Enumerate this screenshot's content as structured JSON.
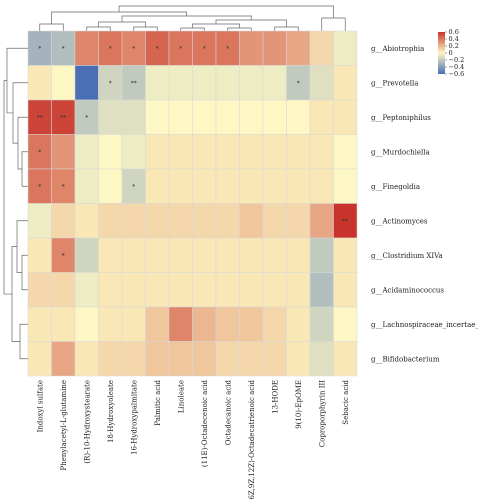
{
  "chart_data": {
    "type": "heatmap",
    "title": "",
    "xlabel": "",
    "ylabel": "",
    "columns": [
      "Indoxyl sulfate",
      "Phenylacetyl-L-glutamine",
      "(R)-10-Hydroxystearate",
      "18-Hydroxyoleate",
      "16-Hydroxypalmitate",
      "Palmitic acid",
      "Linoleate",
      "(11E)-Octadecenoic acid",
      "Octadecanoic acid",
      "(6Z,9Z,12Z)-Octadecatrienoic acid",
      "13-HODE",
      "9(10)-EpOME",
      "Coproporphyrin III",
      "Sebacic acid"
    ],
    "rows": [
      "g__Abiotrophia",
      "g__Prevotella",
      "g__Peptoniphilus",
      "g__Murdochiella",
      "g__Finegoldia",
      "g__Actinomyces",
      "g__Clostridium XIVa",
      "g__Acidaminococcus",
      "g__Lachnospiraceae_incertae_sedis",
      "g__Bifidobacterium"
    ],
    "values": [
      [
        -0.3,
        -0.25,
        0.35,
        0.4,
        0.35,
        0.45,
        0.4,
        0.4,
        0.4,
        0.3,
        0.3,
        0.25,
        0.1,
        -0.05
      ],
      [
        0.05,
        0.0,
        -0.6,
        -0.15,
        -0.2,
        -0.05,
        -0.05,
        -0.05,
        -0.05,
        -0.05,
        -0.05,
        -0.2,
        -0.1,
        0.05
      ],
      [
        0.55,
        0.55,
        -0.2,
        -0.1,
        -0.1,
        0.0,
        0.0,
        0.0,
        0.0,
        0.0,
        0.0,
        0.0,
        0.05,
        0.05
      ],
      [
        0.4,
        0.3,
        -0.05,
        0.0,
        -0.05,
        0.05,
        0.05,
        0.05,
        0.05,
        0.05,
        0.05,
        0.05,
        0.05,
        0.0
      ],
      [
        0.4,
        0.35,
        -0.05,
        0.0,
        -0.15,
        0.05,
        0.05,
        0.05,
        0.05,
        0.05,
        0.05,
        0.05,
        0.05,
        0.0
      ],
      [
        -0.05,
        0.1,
        0.05,
        0.1,
        0.1,
        0.1,
        0.1,
        0.1,
        0.1,
        0.15,
        0.1,
        0.1,
        0.25,
        0.6
      ],
      [
        0.05,
        0.35,
        -0.15,
        0.05,
        0.05,
        0.05,
        0.05,
        0.05,
        0.05,
        0.05,
        0.05,
        0.05,
        -0.2,
        0.05
      ],
      [
        0.1,
        0.1,
        -0.05,
        0.05,
        0.05,
        0.05,
        0.05,
        0.05,
        0.05,
        0.05,
        0.05,
        0.05,
        -0.25,
        0.05
      ],
      [
        0.05,
        0.05,
        0.0,
        0.05,
        0.05,
        0.15,
        0.35,
        0.2,
        0.15,
        0.15,
        0.1,
        0.05,
        -0.15,
        0.0
      ],
      [
        0.05,
        0.25,
        0.05,
        0.1,
        0.1,
        0.15,
        0.15,
        0.15,
        0.1,
        0.1,
        0.1,
        0.05,
        -0.1,
        0.05
      ]
    ],
    "significance": [
      [
        "*",
        "*",
        "",
        "*",
        "*",
        "*",
        "*",
        "*",
        "*",
        "",
        "",
        "",
        "",
        ""
      ],
      [
        "",
        "",
        "",
        "*",
        "**",
        "",
        "",
        "",
        "",
        "",
        "",
        "*",
        "",
        ""
      ],
      [
        "**",
        "**",
        "*",
        "",
        "",
        "",
        "",
        "",
        "",
        "",
        "",
        "",
        "",
        ""
      ],
      [
        "*",
        "",
        "",
        "",
        "",
        "",
        "",
        "",
        "",
        "",
        "",
        "",
        "",
        ""
      ],
      [
        "*",
        "*",
        "",
        "",
        "*",
        "",
        "",
        "",
        "",
        "",
        "",
        "",
        "",
        ""
      ],
      [
        "",
        "",
        "",
        "",
        "",
        "",
        "",
        "",
        "",
        "",
        "",
        "",
        "",
        "**"
      ],
      [
        "",
        "*",
        "",
        "",
        "",
        "",
        "",
        "",
        "",
        "",
        "",
        "",
        "",
        ""
      ],
      [
        "",
        "",
        "",
        "",
        "",
        "",
        "",
        "",
        "",
        "",
        "",
        "",
        "",
        ""
      ],
      [
        "",
        "",
        "",
        "",
        "",
        "",
        "",
        "",
        "",
        "",
        "",
        "",
        "",
        ""
      ],
      [
        "",
        "",
        "",
        "",
        "",
        "",
        "",
        "",
        "",
        "",
        "",
        "",
        "",
        ""
      ]
    ],
    "color_scale": {
      "range": [
        -0.6,
        0.6
      ],
      "ticks": [
        "0.6",
        "0.4",
        "0.2",
        "0",
        "−0.2",
        "−0.4",
        "−0.6"
      ],
      "colors": {
        "low": "#4a6fb5",
        "mid": "#fdf7c3",
        "high": "#c8342b"
      }
    },
    "dendrograms": {
      "columns": true,
      "rows": true
    },
    "grid": true,
    "legend": "top-right"
  }
}
